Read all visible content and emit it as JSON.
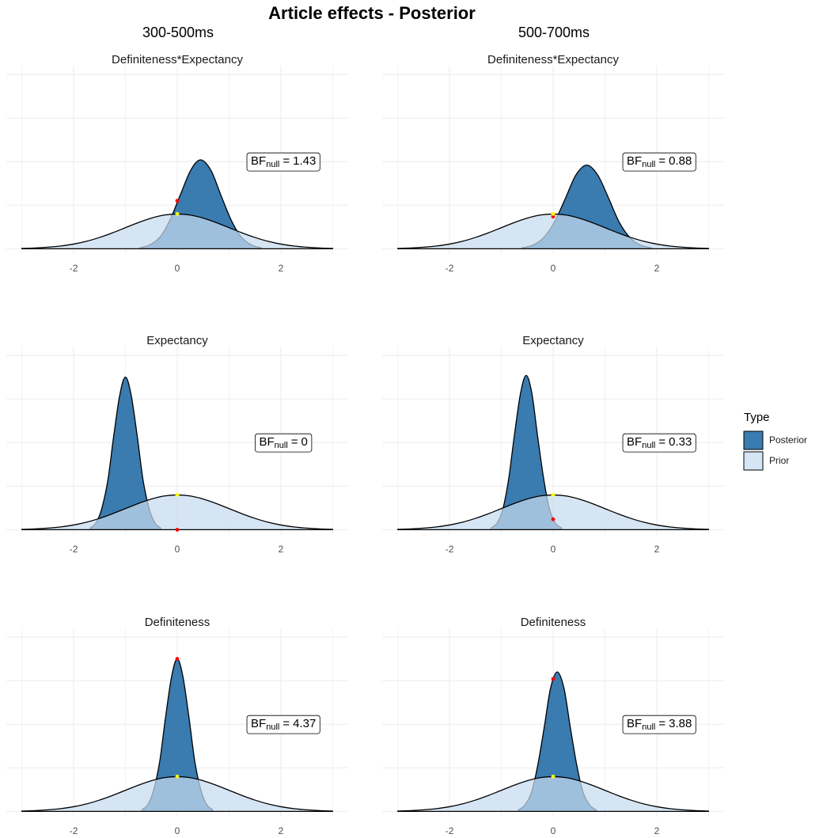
{
  "title": "Article effects - Posterior",
  "columns": [
    "300-500ms",
    "500-700ms"
  ],
  "legend_title": "Type",
  "chart_data": [
    {
      "type": "area",
      "title": "Definiteness*Expectancy",
      "xlim": [
        -3.3,
        3.3
      ],
      "ylim": [
        -0.06,
        2.1
      ],
      "xticks": [
        -2,
        0,
        2
      ],
      "xminor": [
        -3,
        -1,
        1,
        3
      ],
      "ygrid": [
        0,
        0.5,
        1,
        1.5,
        2
      ],
      "grid": true,
      "annotation": {
        "base": "BF",
        "sub": "null",
        "op": "=",
        "value": 1.43
      },
      "series": [
        {
          "name": "Posterior",
          "color": "#3a7bb0",
          "alpha": 1,
          "x": [
            -0.72,
            -0.53,
            -0.33,
            -0.14,
            0.06,
            0.26,
            0.45,
            0.65,
            0.84,
            1.04,
            1.23,
            1.43,
            1.62
          ],
          "values": [
            0.011,
            0.045,
            0.138,
            0.331,
            0.619,
            0.9,
            1.02,
            0.9,
            0.619,
            0.331,
            0.138,
            0.045,
            0.011
          ]
        },
        {
          "name": "Prior",
          "color": "#c6dbef",
          "alpha": 0.72,
          "x": [
            -3,
            -2.75,
            -2.5,
            -2.25,
            -2,
            -1.75,
            -1.5,
            -1.25,
            -1,
            -0.75,
            -0.5,
            -0.25,
            0,
            0.25,
            0.5,
            0.75,
            1,
            1.25,
            1.5,
            1.75,
            2,
            2.25,
            2.5,
            2.75,
            3
          ],
          "values": [
            0.004,
            0.009,
            0.018,
            0.032,
            0.054,
            0.086,
            0.13,
            0.183,
            0.242,
            0.301,
            0.352,
            0.387,
            0.399,
            0.387,
            0.352,
            0.301,
            0.242,
            0.183,
            0.13,
            0.086,
            0.054,
            0.032,
            0.018,
            0.009,
            0.004
          ]
        }
      ],
      "points": [
        {
          "x": 0,
          "y": 0.55,
          "color": "#ff0000"
        },
        {
          "x": 0,
          "y": 0.4,
          "color": "#ffff00"
        }
      ]
    },
    {
      "type": "area",
      "title": "Definiteness*Expectancy",
      "xlim": [
        -3.3,
        3.3
      ],
      "ylim": [
        -0.06,
        2.1
      ],
      "xticks": [
        -2,
        0,
        2
      ],
      "xminor": [
        -3,
        -1,
        1,
        3
      ],
      "ygrid": [
        0,
        0.5,
        1,
        1.5,
        2
      ],
      "grid": true,
      "annotation": {
        "base": "BF",
        "sub": "null",
        "op": "=",
        "value": 0.88
      },
      "series": [
        {
          "name": "Posterior",
          "color": "#3a7bb0",
          "alpha": 1,
          "x": [
            -0.6,
            -0.39,
            -0.18,
            0.03,
            0.24,
            0.44,
            0.65,
            0.86,
            1.07,
            1.27,
            1.48,
            1.69,
            1.9
          ],
          "values": [
            0.011,
            0.042,
            0.13,
            0.312,
            0.582,
            0.847,
            0.96,
            0.847,
            0.582,
            0.312,
            0.13,
            0.042,
            0.011
          ]
        },
        {
          "name": "Prior",
          "color": "#c6dbef",
          "alpha": 0.72,
          "x": [
            -3,
            -2.75,
            -2.5,
            -2.25,
            -2,
            -1.75,
            -1.5,
            -1.25,
            -1,
            -0.75,
            -0.5,
            -0.25,
            0,
            0.25,
            0.5,
            0.75,
            1,
            1.25,
            1.5,
            1.75,
            2,
            2.25,
            2.5,
            2.75,
            3
          ],
          "values": [
            0.004,
            0.009,
            0.018,
            0.032,
            0.054,
            0.086,
            0.13,
            0.183,
            0.242,
            0.301,
            0.352,
            0.387,
            0.399,
            0.387,
            0.352,
            0.301,
            0.242,
            0.183,
            0.13,
            0.086,
            0.054,
            0.032,
            0.018,
            0.009,
            0.004
          ]
        }
      ],
      "points": [
        {
          "x": 0,
          "y": 0.37,
          "color": "#ff0000"
        },
        {
          "x": 0,
          "y": 0.4,
          "color": "#ffff00"
        }
      ]
    },
    {
      "type": "area",
      "title": "Expectancy",
      "xlim": [
        -3.3,
        3.3
      ],
      "ylim": [
        -0.06,
        2.1
      ],
      "xticks": [
        -2,
        0,
        2
      ],
      "xminor": [
        -3,
        -1,
        1,
        3
      ],
      "ygrid": [
        0,
        0.5,
        1,
        1.5,
        2
      ],
      "grid": true,
      "annotation": {
        "base": "BF",
        "sub": "null",
        "op": "=",
        "value": 0
      },
      "series": [
        {
          "name": "Posterior",
          "color": "#3a7bb0",
          "alpha": 1,
          "x": [
            -1.68,
            -1.57,
            -1.46,
            -1.34,
            -1.23,
            -1.11,
            -1.0,
            -0.89,
            -0.77,
            -0.66,
            -0.54,
            -0.43,
            -0.32
          ],
          "values": [
            0.019,
            0.077,
            0.237,
            0.568,
            1.061,
            1.544,
            1.75,
            1.544,
            1.061,
            0.568,
            0.237,
            0.077,
            0.019
          ]
        },
        {
          "name": "Prior",
          "color": "#c6dbef",
          "alpha": 0.72,
          "x": [
            -3,
            -2.75,
            -2.5,
            -2.25,
            -2,
            -1.75,
            -1.5,
            -1.25,
            -1,
            -0.75,
            -0.5,
            -0.25,
            0,
            0.25,
            0.5,
            0.75,
            1,
            1.25,
            1.5,
            1.75,
            2,
            2.25,
            2.5,
            2.75,
            3
          ],
          "values": [
            0.004,
            0.009,
            0.018,
            0.032,
            0.054,
            0.086,
            0.13,
            0.183,
            0.242,
            0.301,
            0.352,
            0.387,
            0.399,
            0.387,
            0.352,
            0.301,
            0.242,
            0.183,
            0.13,
            0.086,
            0.054,
            0.032,
            0.018,
            0.009,
            0.004
          ]
        }
      ],
      "points": [
        {
          "x": 0,
          "y": 0,
          "color": "#ff0000"
        },
        {
          "x": 0,
          "y": 0.4,
          "color": "#ffff00"
        }
      ]
    },
    {
      "type": "area",
      "title": "Expectancy",
      "xlim": [
        -3.3,
        3.3
      ],
      "ylim": [
        -0.06,
        2.1
      ],
      "xticks": [
        -2,
        0,
        2
      ],
      "xminor": [
        -3,
        -1,
        1,
        3
      ],
      "ygrid": [
        0,
        0.5,
        1,
        1.5,
        2
      ],
      "grid": true,
      "annotation": {
        "base": "BF",
        "sub": "null",
        "op": "=",
        "value": 0.33
      },
      "series": [
        {
          "name": "Posterior",
          "color": "#3a7bb0",
          "alpha": 1,
          "x": [
            -1.2,
            -1.08,
            -0.97,
            -0.86,
            -0.75,
            -0.63,
            -0.52,
            -0.41,
            -0.3,
            -0.18,
            -0.07,
            0.04,
            0.16
          ],
          "values": [
            0.02,
            0.078,
            0.239,
            0.575,
            1.074,
            1.562,
            1.77,
            1.562,
            1.074,
            0.575,
            0.239,
            0.078,
            0.02
          ]
        },
        {
          "name": "Prior",
          "color": "#c6dbef",
          "alpha": 0.72,
          "x": [
            -3,
            -2.75,
            -2.5,
            -2.25,
            -2,
            -1.75,
            -1.5,
            -1.25,
            -1,
            -0.75,
            -0.5,
            -0.25,
            0,
            0.25,
            0.5,
            0.75,
            1,
            1.25,
            1.5,
            1.75,
            2,
            2.25,
            2.5,
            2.75,
            3
          ],
          "values": [
            0.004,
            0.009,
            0.018,
            0.032,
            0.054,
            0.086,
            0.13,
            0.183,
            0.242,
            0.301,
            0.352,
            0.387,
            0.399,
            0.387,
            0.352,
            0.301,
            0.242,
            0.183,
            0.13,
            0.086,
            0.054,
            0.032,
            0.018,
            0.009,
            0.004
          ]
        }
      ],
      "points": [
        {
          "x": 0,
          "y": 0.12,
          "color": "#ff0000"
        },
        {
          "x": 0,
          "y": 0.4,
          "color": "#ffff00"
        }
      ]
    },
    {
      "type": "area",
      "title": "Definiteness",
      "xlim": [
        -3.3,
        3.3
      ],
      "ylim": [
        -0.06,
        2.1
      ],
      "xticks": [
        -2,
        0,
        2
      ],
      "xminor": [
        -3,
        -1,
        1,
        3
      ],
      "ygrid": [
        0,
        0.5,
        1,
        1.5,
        2
      ],
      "grid": true,
      "annotation": {
        "base": "BF",
        "sub": "null",
        "op": "=",
        "value": 4.37
      },
      "series": [
        {
          "name": "Posterior",
          "color": "#3a7bb0",
          "alpha": 1,
          "x": [
            -0.68,
            -0.57,
            -0.46,
            -0.34,
            -0.23,
            -0.11,
            0,
            0.11,
            0.23,
            0.34,
            0.46,
            0.57,
            0.68
          ],
          "values": [
            0.019,
            0.077,
            0.237,
            0.568,
            1.061,
            1.544,
            1.75,
            1.544,
            1.061,
            0.568,
            0.237,
            0.077,
            0.019
          ]
        },
        {
          "name": "Prior",
          "color": "#c6dbef",
          "alpha": 0.72,
          "x": [
            -3,
            -2.75,
            -2.5,
            -2.25,
            -2,
            -1.75,
            -1.5,
            -1.25,
            -1,
            -0.75,
            -0.5,
            -0.25,
            0,
            0.25,
            0.5,
            0.75,
            1,
            1.25,
            1.5,
            1.75,
            2,
            2.25,
            2.5,
            2.75,
            3
          ],
          "values": [
            0.004,
            0.009,
            0.018,
            0.032,
            0.054,
            0.086,
            0.13,
            0.183,
            0.242,
            0.301,
            0.352,
            0.387,
            0.399,
            0.387,
            0.352,
            0.301,
            0.242,
            0.183,
            0.13,
            0.086,
            0.054,
            0.032,
            0.018,
            0.009,
            0.004
          ]
        }
      ],
      "points": [
        {
          "x": 0,
          "y": 1.75,
          "color": "#ff0000"
        },
        {
          "x": 0,
          "y": 0.4,
          "color": "#ffff00"
        }
      ]
    },
    {
      "type": "area",
      "title": "Definiteness",
      "xlim": [
        -3.3,
        3.3
      ],
      "ylim": [
        -0.06,
        2.1
      ],
      "xticks": [
        -2,
        0,
        2
      ],
      "xminor": [
        -3,
        -1,
        1,
        3
      ],
      "ygrid": [
        0,
        0.5,
        1,
        1.5,
        2
      ],
      "grid": true,
      "annotation": {
        "base": "BF",
        "sub": "null",
        "op": "=",
        "value": 3.88
      },
      "series": [
        {
          "name": "Posterior",
          "color": "#3a7bb0",
          "alpha": 1,
          "x": [
            -0.67,
            -0.55,
            -0.42,
            -0.3,
            -0.17,
            -0.05,
            0.08,
            0.21,
            0.33,
            0.46,
            0.58,
            0.71,
            0.83
          ],
          "values": [
            0.018,
            0.07,
            0.216,
            0.52,
            0.97,
            1.412,
            1.6,
            1.412,
            0.97,
            0.52,
            0.216,
            0.07,
            0.018
          ]
        },
        {
          "name": "Prior",
          "color": "#c6dbef",
          "alpha": 0.72,
          "x": [
            -3,
            -2.75,
            -2.5,
            -2.25,
            -2,
            -1.75,
            -1.5,
            -1.25,
            -1,
            -0.75,
            -0.5,
            -0.25,
            0,
            0.25,
            0.5,
            0.75,
            1,
            1.25,
            1.5,
            1.75,
            2,
            2.25,
            2.5,
            2.75,
            3
          ],
          "values": [
            0.004,
            0.009,
            0.018,
            0.032,
            0.054,
            0.086,
            0.13,
            0.183,
            0.242,
            0.301,
            0.352,
            0.387,
            0.399,
            0.387,
            0.352,
            0.301,
            0.242,
            0.183,
            0.13,
            0.086,
            0.054,
            0.032,
            0.018,
            0.009,
            0.004
          ]
        }
      ],
      "points": [
        {
          "x": 0,
          "y": 1.52,
          "color": "#ff0000"
        },
        {
          "x": 0,
          "y": 0.4,
          "color": "#ffff00"
        }
      ]
    }
  ]
}
